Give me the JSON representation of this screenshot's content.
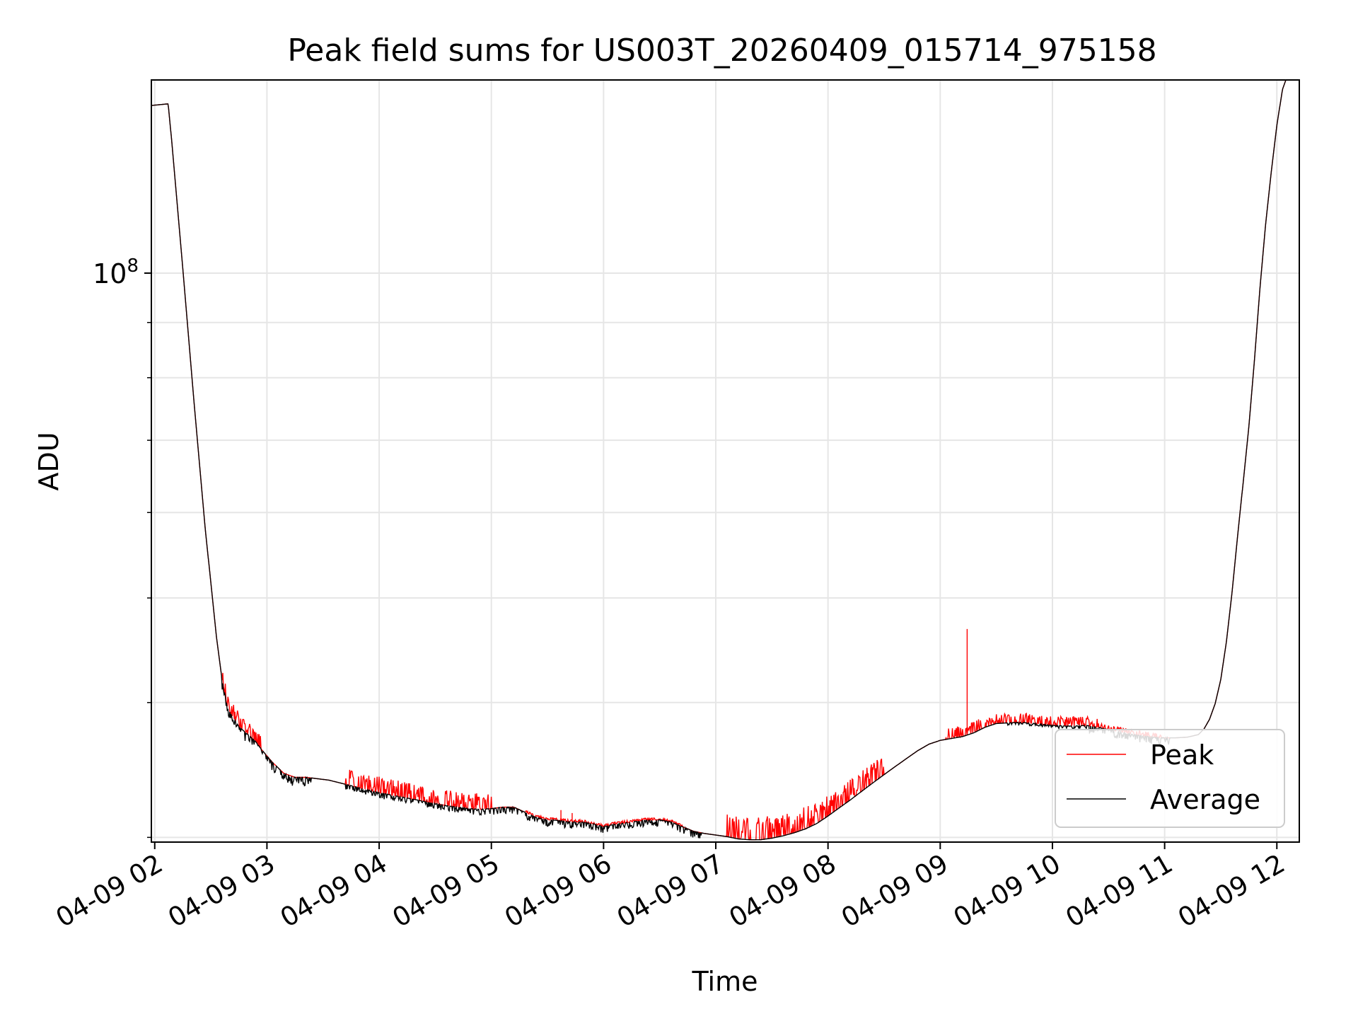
{
  "chart_data": {
    "type": "line",
    "title": "Peak field sums for US003T_20260409_015714_975158",
    "xlabel": "Time",
    "ylabel": "ADU",
    "yscale": "log",
    "ylim": [
      29700000,
      151000000
    ],
    "xlim": [
      1.97,
      12.2
    ],
    "grid": true,
    "legend": {
      "placement": "lower-right",
      "entries": [
        "Peak",
        "Average"
      ]
    },
    "y_major_tick": {
      "value": 100000000,
      "mantissa": "10",
      "exponent": "8"
    },
    "y_minor_ticks": [
      30000000,
      40000000,
      50000000,
      60000000,
      70000000,
      80000000,
      90000000
    ],
    "x_ticks": [
      {
        "value": 2,
        "label": "04-09 02"
      },
      {
        "value": 3,
        "label": "04-09 03"
      },
      {
        "value": 4,
        "label": "04-09 04"
      },
      {
        "value": 5,
        "label": "04-09 05"
      },
      {
        "value": 6,
        "label": "04-09 06"
      },
      {
        "value": 7,
        "label": "04-09 07"
      },
      {
        "value": 8,
        "label": "04-09 08"
      },
      {
        "value": 9,
        "label": "04-09 09"
      },
      {
        "value": 10,
        "label": "04-09 10"
      },
      {
        "value": 11,
        "label": "04-09 11"
      },
      {
        "value": 12,
        "label": "04-09 12"
      }
    ],
    "x_unit": "hour of 2026-04-09",
    "series": [
      {
        "name": "Average",
        "color": "#000000",
        "x": [
          1.97,
          2.12,
          2.15,
          2.25,
          2.35,
          2.45,
          2.55,
          2.6,
          2.65,
          2.75,
          2.85,
          2.9,
          2.95,
          3.05,
          3.15,
          3.25,
          3.35,
          3.45,
          3.55,
          3.65,
          3.75,
          3.85,
          4.0,
          4.2,
          4.4,
          4.6,
          4.8,
          4.9,
          5.0,
          5.1,
          5.2,
          5.3,
          5.4,
          5.5,
          5.6,
          5.7,
          5.8,
          5.9,
          6.0,
          6.1,
          6.2,
          6.35,
          6.5,
          6.6,
          6.7,
          6.8,
          6.9,
          7.0,
          7.1,
          7.2,
          7.3,
          7.4,
          7.5,
          7.6,
          7.7,
          7.8,
          7.9,
          8.0,
          8.1,
          8.2,
          8.3,
          8.4,
          8.5,
          8.6,
          8.7,
          8.8,
          8.9,
          9.0,
          9.1,
          9.2,
          9.3,
          9.4,
          9.5,
          9.6,
          9.7,
          9.8,
          9.9,
          10.0,
          10.1,
          10.2,
          10.3,
          10.4,
          10.5,
          10.6,
          10.7,
          10.8,
          10.9,
          11.0,
          11.1,
          11.2,
          11.3,
          11.35,
          11.4,
          11.45,
          11.5,
          11.55,
          11.6,
          11.65,
          11.7,
          11.75,
          11.8,
          11.85,
          11.9,
          11.95,
          12.0,
          12.05,
          12.1
        ],
        "y": [
          143000000,
          143500000,
          133000000,
          101000000,
          76000000,
          58000000,
          46000000,
          42000000,
          39500000,
          38000000,
          37200000,
          36800000,
          36200000,
          35200000,
          34400000,
          34100000,
          34100000,
          34000000,
          33900000,
          33700000,
          33500000,
          33300000,
          33000000,
          32700000,
          32400000,
          32100000,
          31900000,
          31850000,
          31900000,
          32000000,
          32000000,
          31650000,
          31300000,
          31150000,
          31100000,
          31000000,
          31000000,
          30900000,
          30700000,
          30850000,
          30950000,
          31100000,
          31150000,
          31000000,
          30700000,
          30400000,
          30250000,
          30150000,
          30050000,
          29900000,
          29850000,
          29850000,
          29950000,
          30100000,
          30300000,
          30550000,
          30900000,
          31400000,
          31950000,
          32500000,
          33100000,
          33700000,
          34300000,
          34900000,
          35500000,
          36100000,
          36600000,
          36900000,
          37050000,
          37200000,
          37500000,
          37950000,
          38250000,
          38300000,
          38350000,
          38300000,
          38200000,
          38100000,
          38050000,
          38050000,
          38100000,
          37950000,
          37750000,
          37600000,
          37400000,
          37250000,
          37150000,
          37100000,
          37100000,
          37150000,
          37350000,
          37800000,
          38600000,
          39900000,
          42000000,
          45500000,
          50500000,
          57000000,
          64000000,
          72000000,
          83000000,
          97000000,
          111000000,
          124000000,
          137000000,
          148000000,
          153000000
        ]
      },
      {
        "name": "Peak",
        "color": "#ff0000",
        "noise_upper": [
          {
            "from": 2.6,
            "to": 2.95,
            "amp": 0.03
          },
          {
            "from": 3.7,
            "to": 5.0,
            "amp": 0.035
          },
          {
            "from": 5.3,
            "to": 6.7,
            "amp": 0.005
          },
          {
            "from": 7.1,
            "to": 7.85,
            "amp": 0.05
          },
          {
            "from": 7.85,
            "to": 8.5,
            "amp": 0.045
          },
          {
            "from": 9.05,
            "to": 9.35,
            "amp": 0.025
          },
          {
            "from": 9.35,
            "to": 10.4,
            "amp": 0.02
          },
          {
            "from": 10.4,
            "to": 11.0,
            "amp": 0.01
          }
        ],
        "spikes": [
          {
            "x": 9.24,
            "y": 46800000
          },
          {
            "x": 5.62,
            "y": 31800000
          },
          {
            "x": 5.72,
            "y": 31600000
          },
          {
            "x": 5.55,
            "y": 31300000
          }
        ]
      }
    ]
  }
}
